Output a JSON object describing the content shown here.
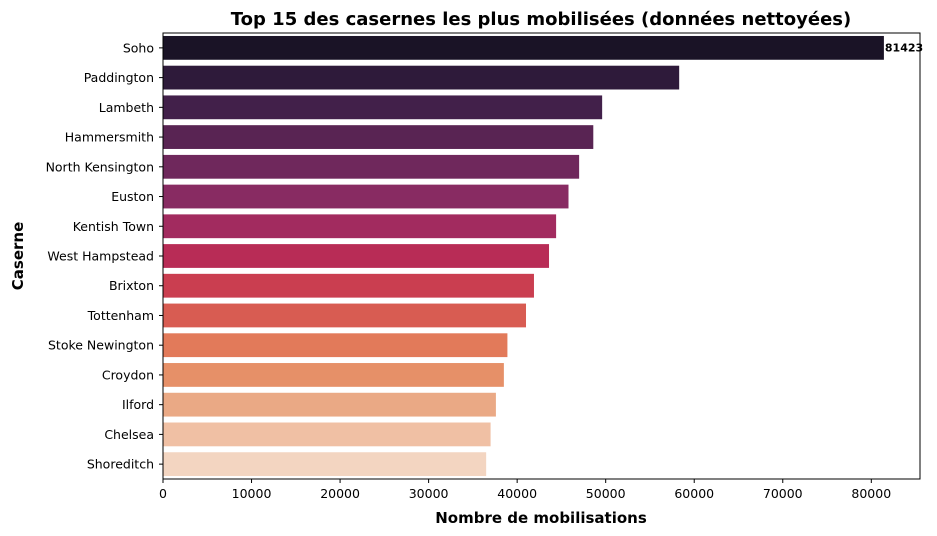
{
  "chart_data": {
    "type": "bar",
    "orientation": "horizontal",
    "title": "Top 15 des casernes les plus mobilisées (données nettoyées)",
    "xlabel": "Nombre de mobilisations",
    "ylabel": "Caserne",
    "categories": [
      "Soho",
      "Paddington",
      "Lambeth",
      "Hammersmith",
      "North Kensington",
      "Euston",
      "Kentish Town",
      "West Hampstead",
      "Brixton",
      "Tottenham",
      "Stoke Newington",
      "Croydon",
      "Ilford",
      "Chelsea",
      "Shoreditch"
    ],
    "values": [
      81423,
      58300,
      49600,
      48600,
      47000,
      45800,
      44400,
      43600,
      41900,
      41000,
      38900,
      38500,
      37600,
      37000,
      36500
    ],
    "colors": [
      "#1a1326",
      "#2e1a3a",
      "#42204a",
      "#592453",
      "#6f285c",
      "#882b62",
      "#a22b5f",
      "#b82c56",
      "#ca3e50",
      "#d85c52",
      "#e27a5a",
      "#e69068",
      "#eaa985",
      "#f0c0a4",
      "#f3d5c1"
    ],
    "data_labels": [
      {
        "category": "Soho",
        "text": "81423"
      }
    ],
    "xlim": [
      0,
      85500
    ],
    "xticks": [
      0,
      10000,
      20000,
      30000,
      40000,
      50000,
      60000,
      70000,
      80000
    ],
    "grid": false,
    "legend": "none"
  }
}
